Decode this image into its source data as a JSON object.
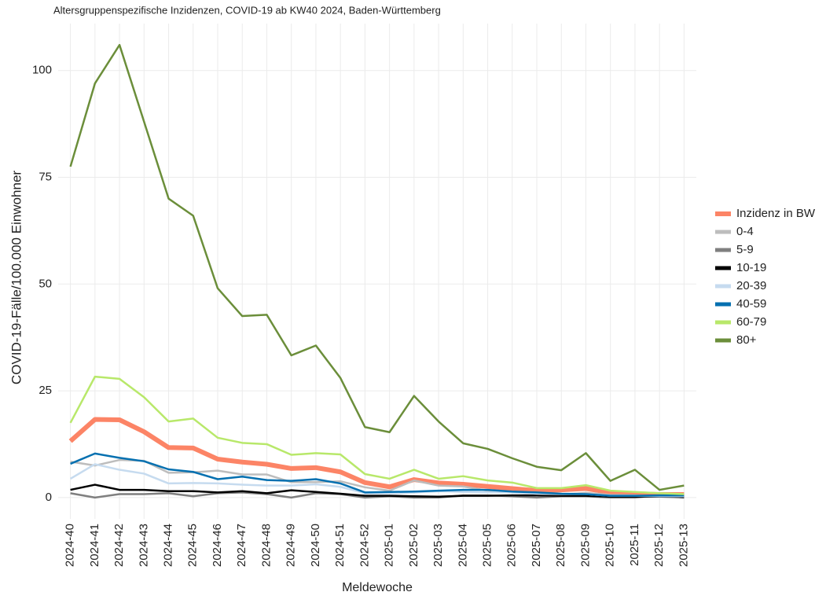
{
  "chart_data": {
    "type": "line",
    "title": "Altersgruppenspezifische Inzidenzen, COVID-19 ab KW40 2024, Baden-Württemberg",
    "x_label": "Meldewoche",
    "y_label": "COVID-19-Fälle/100.000 Einwohner",
    "categories": [
      "2024-40",
      "2024-41",
      "2024-42",
      "2024-43",
      "2024-44",
      "2024-45",
      "2024-46",
      "2024-47",
      "2024-48",
      "2024-49",
      "2024-50",
      "2024-51",
      "2024-52",
      "2025-01",
      "2025-02",
      "2025-03",
      "2025-04",
      "2025-05",
      "2025-06",
      "2025-07",
      "2025-08",
      "2025-09",
      "2025-10",
      "2025-11",
      "2025-12",
      "2025-13"
    ],
    "ylim": [
      -5,
      111
    ],
    "yticks": [
      0,
      25,
      50,
      75,
      100
    ],
    "grid": true,
    "legend": "right",
    "series": [
      {
        "name": "Inzidenz in BW",
        "color": "#fc8466",
        "width": 6,
        "values": [
          13.2,
          18.3,
          18.2,
          15.4,
          11.7,
          11.6,
          9,
          8.3,
          7.8,
          6.8,
          7,
          6,
          3.5,
          2.5,
          4.2,
          3.4,
          3.1,
          2.6,
          2.1,
          1.6,
          1.8,
          2.1,
          1.2,
          0.9,
          0.7,
          0.7
        ]
      },
      {
        "name": "0-4",
        "color": "#bdbdbd",
        "width": 2.5,
        "values": [
          8.4,
          7.5,
          8.8,
          8.6,
          5.8,
          5.9,
          6.3,
          5.4,
          5.4,
          3.6,
          3.6,
          3.8,
          2.4,
          1.6,
          4,
          2.8,
          2.6,
          1.6,
          1.2,
          1.1,
          0.7,
          1.1,
          0.6,
          0.5,
          0.2,
          0.2
        ]
      },
      {
        "name": "5-9",
        "color": "#7f7f7f",
        "width": 2.5,
        "values": [
          1,
          0,
          0.8,
          0.8,
          1,
          0.3,
          1,
          1.2,
          0.8,
          0,
          1,
          0.8,
          0,
          0.3,
          0,
          0,
          0.5,
          0.5,
          0.3,
          0,
          0.3,
          0.3,
          0,
          0,
          0.5,
          0
        ]
      },
      {
        "name": "10-19",
        "color": "#000000",
        "width": 2.5,
        "values": [
          1.8,
          3,
          1.8,
          1.8,
          1.5,
          1.5,
          1.2,
          1.5,
          1,
          1.7,
          1.3,
          0.9,
          0.4,
          0.4,
          0.3,
          0.2,
          0.4,
          0.4,
          0.5,
          0.5,
          0.4,
          0.4,
          0.2,
          0.2,
          0.2,
          0.1
        ]
      },
      {
        "name": "20-39",
        "color": "#c6dbef",
        "width": 2.5,
        "values": [
          4.4,
          7.8,
          6.5,
          5.6,
          3.3,
          3.4,
          3.3,
          3,
          2.8,
          2.8,
          3.1,
          2.5,
          1,
          1,
          1.2,
          1.5,
          1.3,
          1.2,
          1.2,
          0.9,
          0.8,
          0.8,
          0.4,
          0.4,
          0.3,
          0.3
        ]
      },
      {
        "name": "40-59",
        "color": "#0570b0",
        "width": 2.5,
        "values": [
          7.9,
          10.3,
          9.3,
          8.5,
          6.6,
          6,
          4.3,
          4.9,
          4.1,
          3.9,
          4.3,
          3.3,
          1.2,
          1.3,
          1.4,
          1.6,
          1.8,
          1.8,
          1.4,
          1.2,
          0.9,
          0.8,
          0.4,
          0.4,
          0.5,
          0.5
        ]
      },
      {
        "name": "60-79",
        "color": "#b8e86a",
        "width": 2.5,
        "values": [
          17.5,
          28.3,
          27.8,
          23.5,
          17.8,
          18.5,
          14,
          12.8,
          12.5,
          10,
          10.4,
          10.1,
          5.5,
          4.4,
          6.5,
          4.4,
          5,
          4,
          3.5,
          2.2,
          2.2,
          2.9,
          1.6,
          1.3,
          1,
          0.8
        ]
      },
      {
        "name": "80+",
        "color": "#6b8e3a",
        "width": 2.5,
        "values": [
          77.5,
          97,
          106,
          88,
          70,
          66,
          49,
          42.5,
          42.8,
          33.3,
          35.6,
          28,
          16.5,
          15.3,
          23.8,
          17.8,
          12.7,
          11.4,
          9.2,
          7.2,
          6.4,
          10.4,
          3.9,
          6.5,
          1.8,
          2.8
        ]
      }
    ]
  }
}
